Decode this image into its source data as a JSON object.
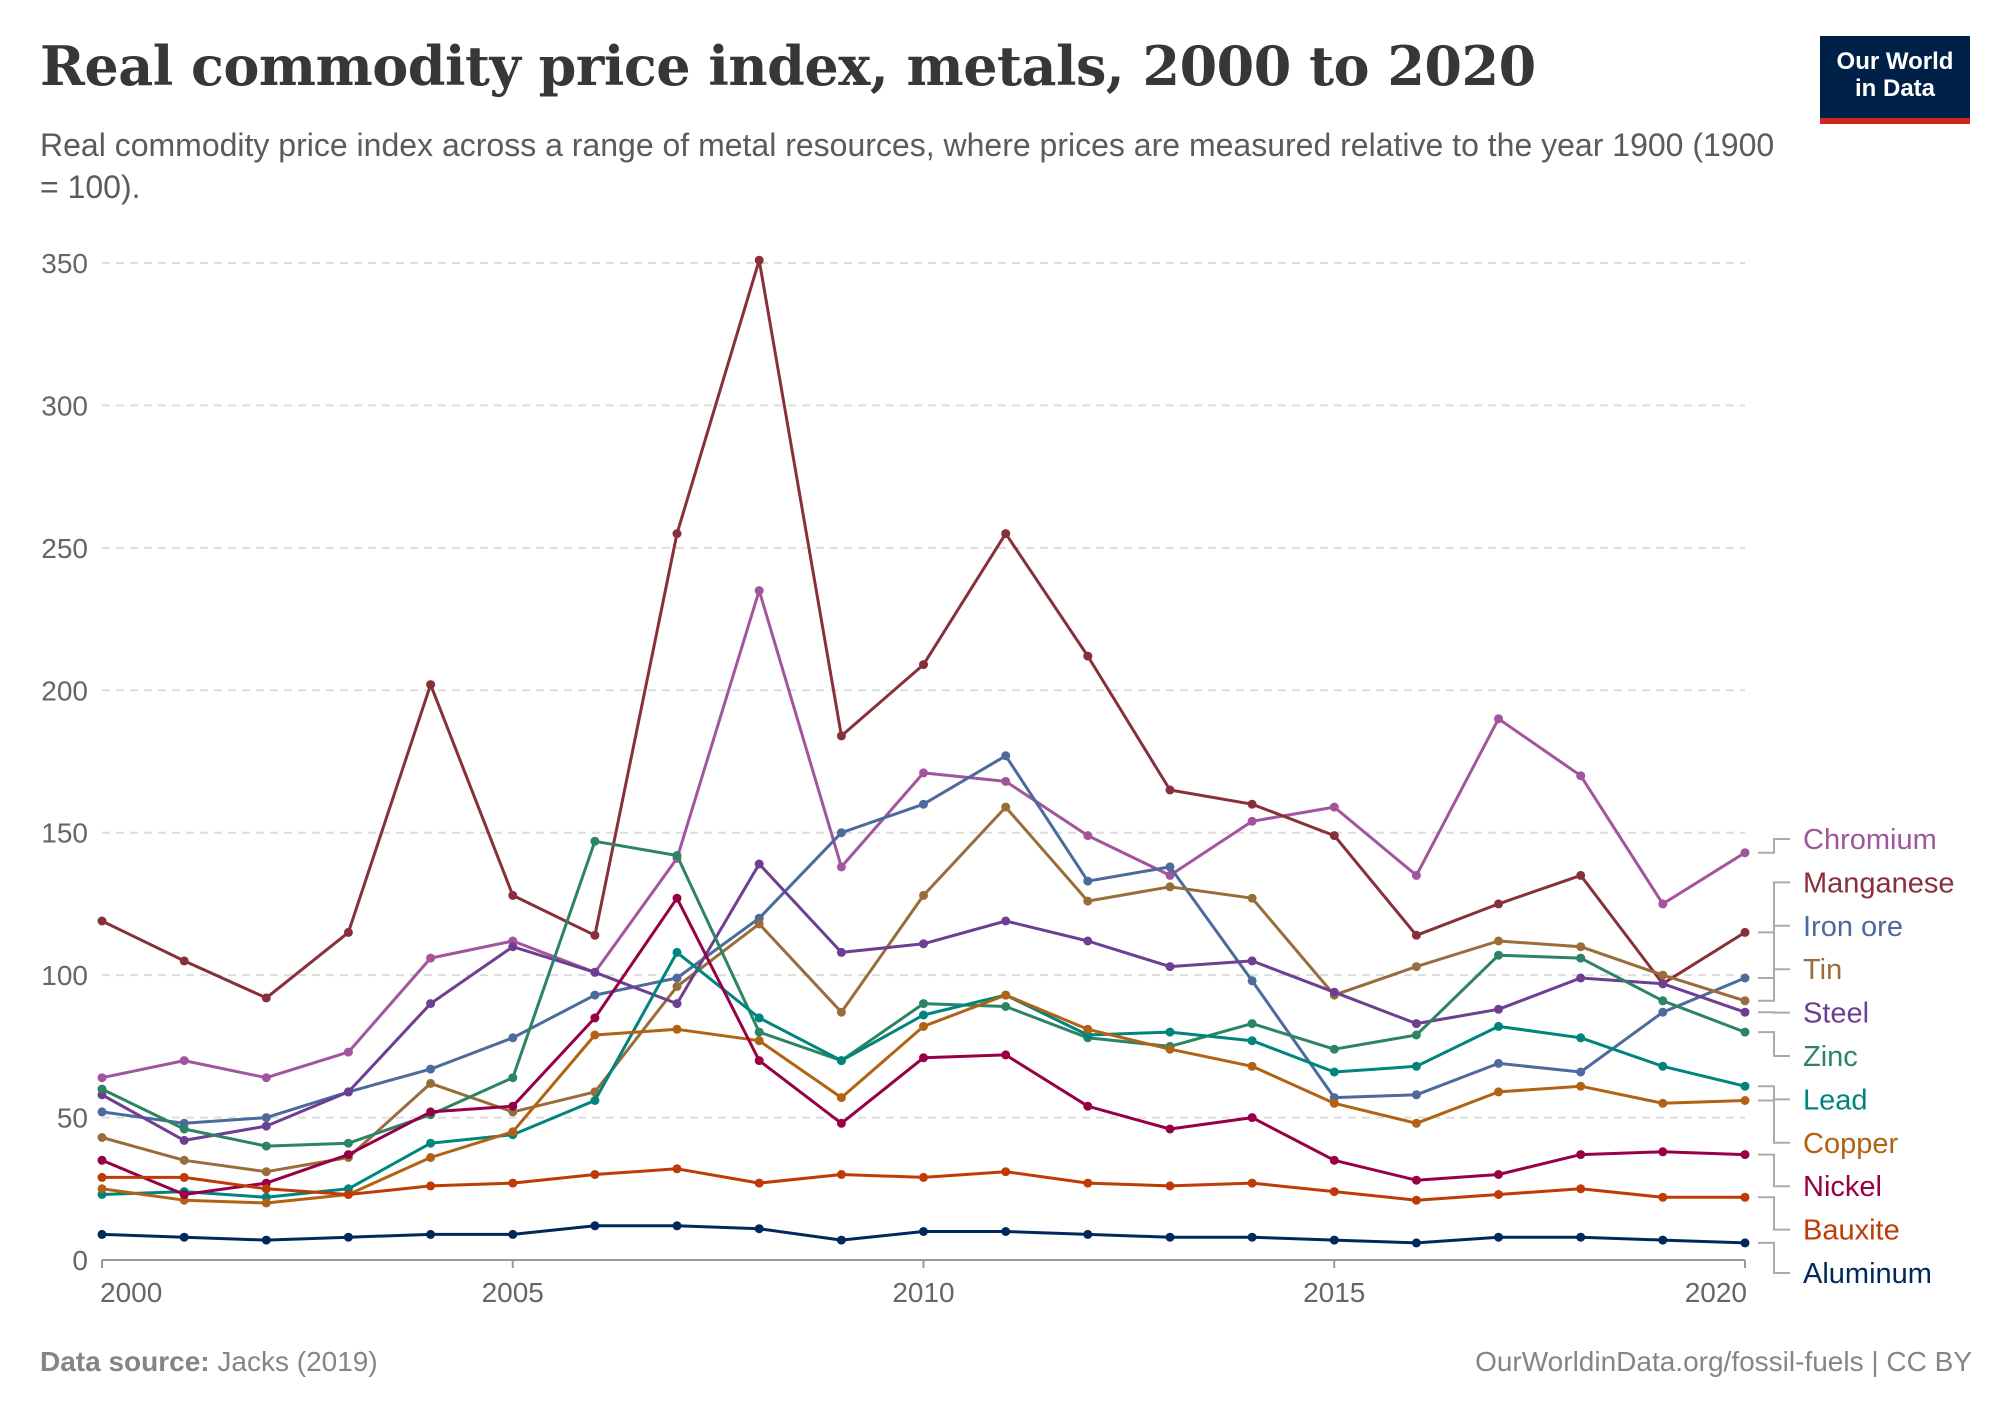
{
  "header": {
    "title": "Real commodity price index, metals, 2000 to 2020",
    "subtitle": "Real commodity price index across a range of metal resources, where prices are measured relative to the year 1900 (1900 = 100).",
    "logo_line1": "Our World",
    "logo_line2": "in Data"
  },
  "footer": {
    "source_label": "Data source:",
    "source_value": "Jacks (2019)",
    "credit": "OurWorldinData.org/fossil-fuels | CC BY"
  },
  "chart_data": {
    "type": "line",
    "title": "Real commodity price index, metals, 2000 to 2020",
    "xlabel": "",
    "ylabel": "",
    "x": [
      2000,
      2001,
      2002,
      2003,
      2004,
      2005,
      2006,
      2007,
      2008,
      2009,
      2010,
      2011,
      2012,
      2013,
      2014,
      2015,
      2016,
      2017,
      2018,
      2019,
      2020
    ],
    "xlim": [
      2000,
      2020
    ],
    "ylim": [
      0,
      350
    ],
    "x_ticks": [
      2000,
      2005,
      2010,
      2015,
      2020
    ],
    "y_ticks": [
      0,
      50,
      100,
      150,
      200,
      250,
      300,
      350
    ],
    "grid": "horizontal dashed",
    "legend": "right, labels at line ends",
    "series": [
      {
        "name": "Chromium",
        "color": "#a2559c",
        "values": [
          64,
          70,
          64,
          73,
          106,
          112,
          101,
          141,
          235,
          138,
          171,
          168,
          149,
          135,
          154,
          159,
          135,
          190,
          170,
          125,
          143
        ]
      },
      {
        "name": "Manganese",
        "color": "#883039",
        "values": [
          119,
          105,
          92,
          115,
          202,
          128,
          114,
          255,
          351,
          184,
          209,
          255,
          212,
          165,
          160,
          149,
          114,
          125,
          135,
          97,
          115
        ]
      },
      {
        "name": "Iron ore",
        "color": "#4c6a9c",
        "values": [
          52,
          48,
          50,
          59,
          67,
          78,
          93,
          99,
          120,
          150,
          160,
          177,
          133,
          138,
          98,
          57,
          58,
          69,
          66,
          87,
          99
        ]
      },
      {
        "name": "Tin",
        "color": "#996d39",
        "values": [
          43,
          35,
          31,
          36,
          62,
          52,
          59,
          96,
          118,
          87,
          128,
          159,
          126,
          131,
          127,
          93,
          103,
          112,
          110,
          100,
          91
        ]
      },
      {
        "name": "Steel",
        "color": "#6d3e91",
        "values": [
          58,
          42,
          47,
          59,
          90,
          110,
          101,
          90,
          139,
          108,
          111,
          119,
          112,
          103,
          105,
          94,
          83,
          88,
          99,
          97,
          87
        ]
      },
      {
        "name": "Zinc",
        "color": "#2c8465",
        "values": [
          60,
          46,
          40,
          41,
          51,
          64,
          147,
          142,
          80,
          70,
          90,
          89,
          78,
          75,
          83,
          74,
          79,
          107,
          106,
          91,
          80
        ]
      },
      {
        "name": "Lead",
        "color": "#00847e",
        "values": [
          23,
          24,
          22,
          25,
          41,
          44,
          56,
          108,
          85,
          70,
          86,
          93,
          79,
          80,
          77,
          66,
          68,
          82,
          78,
          68,
          61
        ]
      },
      {
        "name": "Copper",
        "color": "#b16214",
        "values": [
          25,
          21,
          20,
          23,
          36,
          45,
          79,
          81,
          77,
          57,
          82,
          93,
          81,
          74,
          68,
          55,
          48,
          59,
          61,
          55,
          56
        ]
      },
      {
        "name": "Nickel",
        "color": "#970046",
        "values": [
          35,
          23,
          27,
          37,
          52,
          54,
          85,
          127,
          70,
          48,
          71,
          72,
          54,
          46,
          50,
          35,
          28,
          30,
          37,
          38,
          37
        ]
      },
      {
        "name": "Bauxite",
        "color": "#be3b05",
        "values": [
          29,
          29,
          25,
          23,
          26,
          27,
          30,
          32,
          27,
          30,
          29,
          31,
          27,
          26,
          27,
          24,
          21,
          23,
          25,
          22,
          22
        ]
      },
      {
        "name": "Aluminum",
        "color": "#00295b",
        "values": [
          9,
          8,
          7,
          8,
          9,
          9,
          12,
          12,
          11,
          7,
          10,
          10,
          9,
          8,
          8,
          7,
          6,
          8,
          8,
          7,
          6
        ]
      }
    ]
  }
}
